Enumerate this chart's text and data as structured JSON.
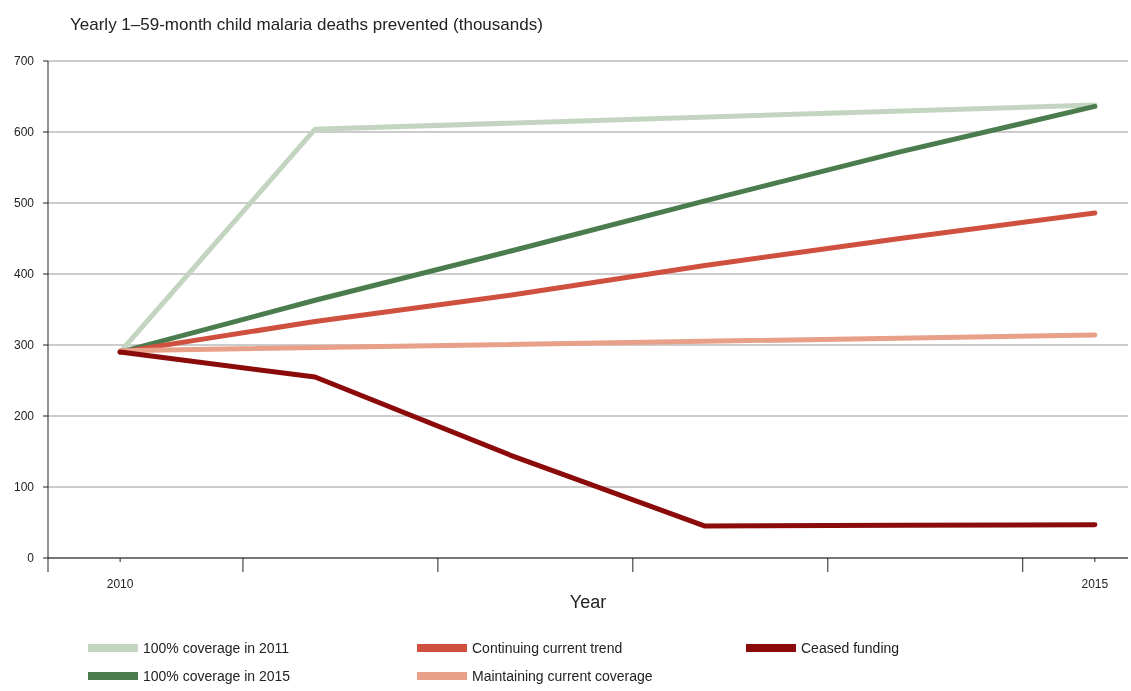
{
  "chart_data": {
    "type": "line",
    "title": "Yearly 1–59-month child malaria deaths prevented (thousands)",
    "xlabel": "Year",
    "xlim": [
      2009.63,
      2015.17
    ],
    "xticks": [
      {
        "value": 2009.63,
        "label": null
      },
      {
        "value": 2010,
        "label": "2010"
      },
      {
        "value": 2010.63,
        "label": null
      },
      {
        "value": 2011.63,
        "label": null
      },
      {
        "value": 2012.63,
        "label": null
      },
      {
        "value": 2013.63,
        "label": null
      },
      {
        "value": 2014.63,
        "label": null
      },
      {
        "value": 2015,
        "label": "2015"
      }
    ],
    "ylim": [
      0,
      700
    ],
    "yticks": [
      0,
      100,
      200,
      300,
      400,
      500,
      600,
      700
    ],
    "grid": "y",
    "legend": "bottom",
    "line_style": "solid",
    "marker": "none",
    "series": [
      {
        "name": "100% coverage in 2011",
        "color": "#c3d5c0",
        "x": [
          2010,
          2011,
          2015
        ],
        "values": [
          290,
          604,
          638
        ]
      },
      {
        "name": "100% coverage in 2015",
        "color": "#4a7c4e",
        "x": [
          2010,
          2011,
          2012,
          2013,
          2014,
          2015
        ],
        "values": [
          290,
          363,
          432,
          503,
          572,
          636
        ]
      },
      {
        "name": "Continuing current trend",
        "color": "#d05040",
        "x": [
          2010,
          2011,
          2012,
          2013,
          2014,
          2015
        ],
        "values": [
          290,
          333,
          370,
          412,
          450,
          486
        ]
      },
      {
        "name": "Maintaining current coverage",
        "color": "#e8a088",
        "x": [
          2010,
          2015
        ],
        "values": [
          292,
          314
        ]
      },
      {
        "name": "Ceased funding",
        "color": "#8b0a0a",
        "x": [
          2010,
          2011,
          2012,
          2013,
          2014,
          2015
        ],
        "values": [
          290,
          255,
          145,
          45,
          46,
          47
        ]
      }
    ]
  }
}
